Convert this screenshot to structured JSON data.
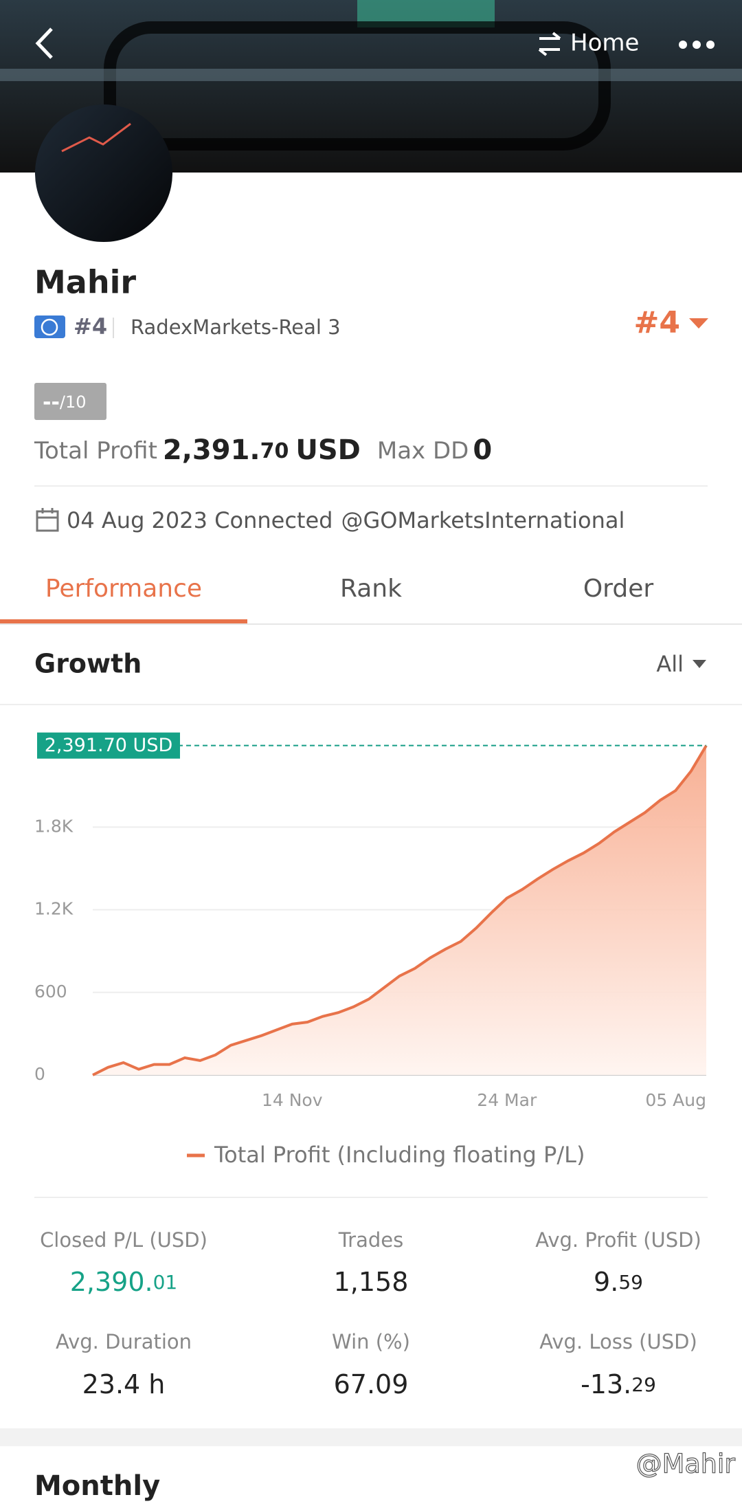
{
  "header": {
    "nav": "Home"
  },
  "profile": {
    "name": "Mahir",
    "rank_badge": "#4",
    "server": "RadexMarkets-Real 3",
    "rank": "#4",
    "score": "--",
    "score_max": "/10",
    "total_profit_label": "Total Profit",
    "total_profit_main": "2,391.",
    "total_profit_decimal": "70",
    "total_profit_unit": "USD",
    "max_dd_label": "Max DD",
    "max_dd": "0",
    "connected": "04 Aug 2023 Connected",
    "broker": "@GOMarketsInternational"
  },
  "tabs": [
    "Performance",
    "Rank",
    "Order"
  ],
  "growth": {
    "title": "Growth",
    "filter": "All"
  },
  "chart_data": {
    "type": "line",
    "annotation": "2,391.70 USD",
    "legend": "bottom",
    "grid": true,
    "categories": [
      null,
      null,
      null,
      null,
      null,
      null,
      null,
      null,
      null,
      null,
      null,
      null,
      null,
      "14 Nov",
      null,
      null,
      null,
      null,
      null,
      null,
      null,
      null,
      null,
      null,
      null,
      null,
      null,
      "24 Mar",
      null,
      null,
      null,
      null,
      null,
      null,
      null,
      null,
      null,
      null,
      null,
      null,
      "05 Aug"
    ],
    "series": [
      {
        "name": "Total Profit (Including floating P/L)",
        "color": "#e8734a",
        "values": [
          0,
          56,
          90,
          42,
          77,
          77,
          125,
          105,
          146,
          216,
          251,
          286,
          328,
          370,
          384,
          426,
          453,
          495,
          551,
          635,
          719,
          774,
          851,
          914,
          970,
          1067,
          1179,
          1284,
          1347,
          1423,
          1493,
          1556,
          1612,
          1681,
          1765,
          1835,
          1905,
          1995,
          2065,
          2205,
          2391.7
        ]
      }
    ],
    "ylim": [
      0,
      2450
    ],
    "yticks": [
      0,
      600,
      {
        "value": 1200,
        "label": "1.2K"
      },
      {
        "value": 1800,
        "label": "1.8K"
      }
    ]
  },
  "stats": [
    [
      {
        "label": "Closed P/L (USD)",
        "main": "2,390.",
        "decimal": "01"
      },
      {
        "label": "Trades",
        "main": "1,158"
      },
      {
        "label": "Avg. Profit (USD)",
        "main": "9.",
        "decimal": "59"
      }
    ],
    [
      {
        "label": "Avg. Duration",
        "main": "23.4 h"
      },
      {
        "label": "Win (%)",
        "main": "67.09"
      },
      {
        "label": "Avg. Loss (USD)",
        "main": "-13.",
        "decimal": "29"
      }
    ]
  ],
  "monthly": {
    "title": "Monthly"
  },
  "watermark": "@Mahir"
}
